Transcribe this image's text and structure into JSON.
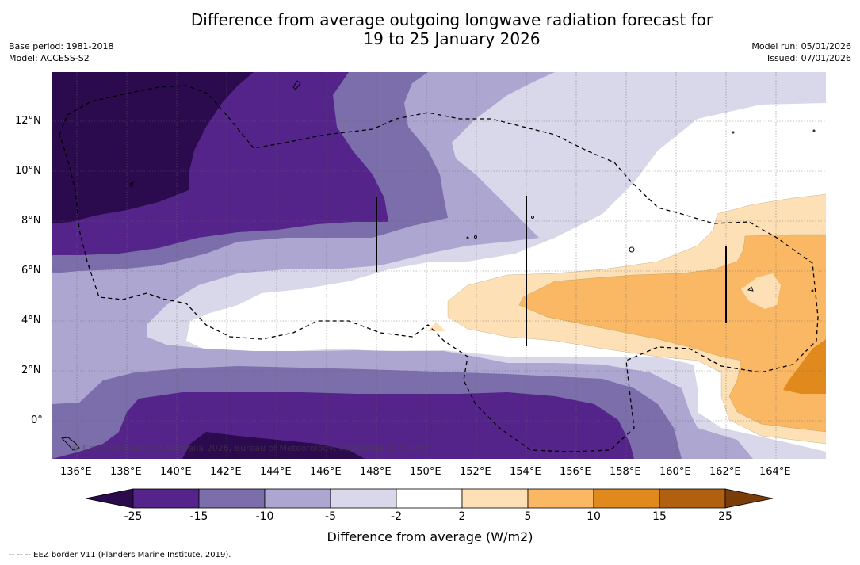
{
  "title_line1": "Difference from average outgoing longwave radiation forecast for",
  "title_line2": "19 to 25 January 2026",
  "base_period": "Base period: 1981-2018",
  "model": "Model: ACCESS-S2",
  "model_run": "Model run: 05/01/2026",
  "issued": "Issued: 07/01/2026",
  "credit": "© Commonwealth of Australia 2026, Bureau of Meteorology, supported by \"DFAT\"",
  "colorbar": {
    "title": "Difference from average (W/m2)",
    "labels": [
      "-25",
      "-15",
      "-10",
      "-5",
      "-2",
      "2",
      "5",
      "10",
      "15",
      "25"
    ],
    "colors": [
      "#2b0a4e",
      "#54248a",
      "#7b6eaa",
      "#aca6d0",
      "#d8d8ea",
      "#ffffff",
      "#fde0b6",
      "#fab764",
      "#e08a1e",
      "#b0600e",
      "#7a3d08"
    ]
  },
  "lat_labels": [
    "12°N",
    "10°N",
    "8°N",
    "6°N",
    "4°N",
    "2°N",
    "0°"
  ],
  "lon_labels": [
    "136°E",
    "138°E",
    "140°E",
    "142°E",
    "144°E",
    "146°E",
    "148°E",
    "150°E",
    "152°E",
    "154°E",
    "156°E",
    "158°E",
    "160°E",
    "162°E",
    "164°E"
  ],
  "footer": "-- -- -- EEZ border V11 (Flanders Marine Institute, 2019)."
}
